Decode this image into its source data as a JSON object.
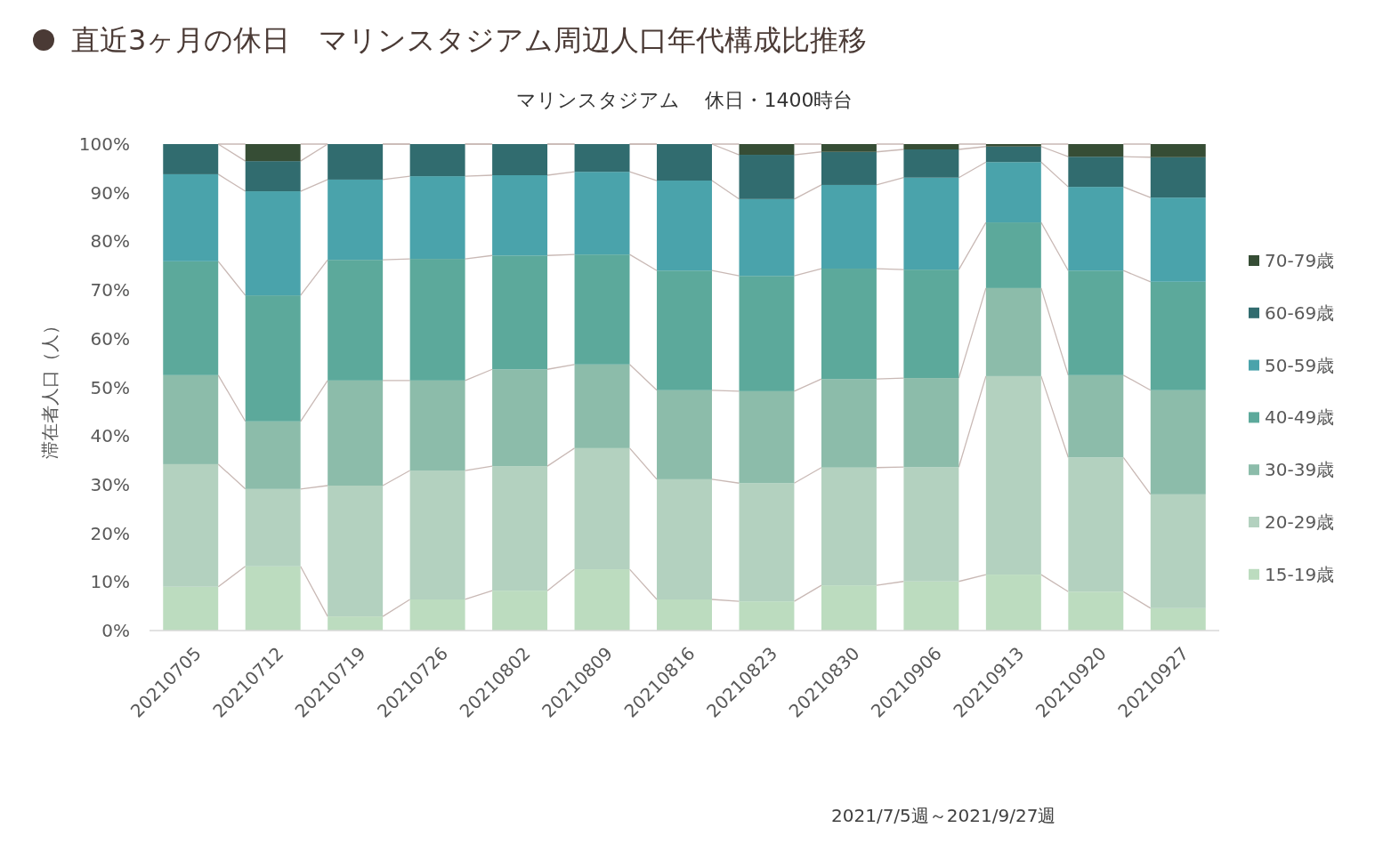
{
  "chart_data": {
    "type": "bar",
    "stacked": true,
    "title": "直近3ヶ月の休日　マリンスタジアム周辺人口年代構成比推移",
    "subtitle": "マリンスタジアム　 休日・1400時台",
    "ylabel": "滞在者人口（人）",
    "annotations": [
      "2021/7/5週～2021/9/27週"
    ],
    "categories": [
      "20210705",
      "20210712",
      "20210719",
      "20210726",
      "20210802",
      "20210809",
      "20210816",
      "20210823",
      "20210830",
      "20210906",
      "20210913",
      "20210920",
      "20210927"
    ],
    "ylim": [
      0,
      100
    ],
    "yticks": [
      {
        "value": 0,
        "label": "0%"
      },
      {
        "value": 10,
        "label": "10%"
      },
      {
        "value": 20,
        "label": "20%"
      },
      {
        "value": 30,
        "label": "30%"
      },
      {
        "value": 40,
        "label": "40%"
      },
      {
        "value": 50,
        "label": "50%"
      },
      {
        "value": 60,
        "label": "60%"
      },
      {
        "value": 70,
        "label": "70%"
      },
      {
        "value": 80,
        "label": "80%"
      },
      {
        "value": 90,
        "label": "90%"
      },
      {
        "value": 100,
        "label": "100%"
      }
    ],
    "grid": false,
    "legend": "right",
    "series": [
      {
        "name": "15-19歳",
        "color": "#bcdcbf",
        "values": [
          9.0,
          13.2,
          2.9,
          6.4,
          8.2,
          12.6,
          6.4,
          6.0,
          9.3,
          10.1,
          11.5,
          8.0,
          4.6
        ]
      },
      {
        "name": "20-29歳",
        "color": "#b3d1bf",
        "values": [
          25.2,
          15.9,
          26.9,
          26.5,
          25.6,
          24.9,
          24.7,
          24.3,
          24.2,
          23.5,
          40.8,
          27.6,
          23.4
        ]
      },
      {
        "name": "30-39歳",
        "color": "#8cbcaa",
        "values": [
          18.3,
          13.9,
          21.6,
          18.5,
          19.9,
          17.2,
          18.3,
          18.9,
          18.2,
          18.3,
          18.1,
          16.9,
          21.4
        ]
      },
      {
        "name": "40-49歳",
        "color": "#5ca99b",
        "values": [
          23.4,
          25.9,
          24.8,
          25.0,
          23.4,
          22.6,
          24.6,
          23.7,
          22.7,
          22.3,
          13.5,
          21.5,
          22.3
        ]
      },
      {
        "name": "50-59歳",
        "color": "#4aa3ab",
        "values": [
          17.9,
          21.4,
          16.5,
          17.0,
          16.5,
          17.0,
          18.5,
          15.8,
          17.2,
          18.9,
          12.4,
          17.2,
          17.3
        ]
      },
      {
        "name": "60-69歳",
        "color": "#316c6f",
        "values": [
          6.2,
          6.2,
          7.3,
          6.6,
          6.4,
          5.7,
          7.5,
          9.1,
          6.8,
          5.8,
          3.2,
          6.2,
          8.3
        ]
      },
      {
        "name": "70-79歳",
        "color": "#364d35",
        "values": [
          0,
          3.5,
          0,
          0,
          0,
          0,
          0,
          2.2,
          1.6,
          1.1,
          0.5,
          2.6,
          2.7
        ]
      }
    ]
  }
}
